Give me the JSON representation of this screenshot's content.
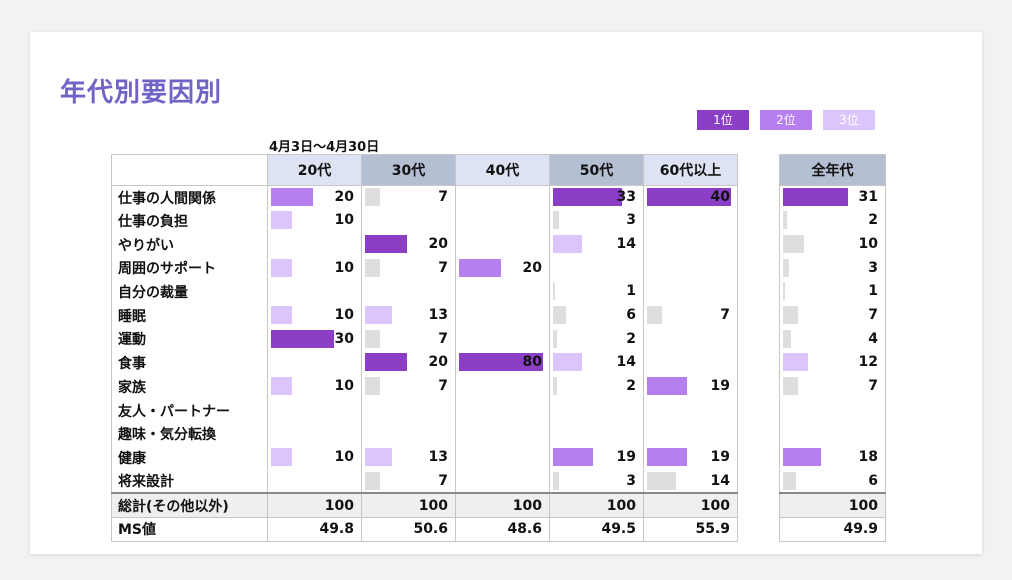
{
  "title": "年代別要因別",
  "period": "4月3日〜4月30日",
  "legend": [
    {
      "label": "1位",
      "color": "#8b3fc7"
    },
    {
      "label": "2位",
      "color": "#b77ef0"
    },
    {
      "label": "3位",
      "color": "#dcc5fb"
    }
  ],
  "colors": {
    "rank1": "#8b3fc7",
    "rank2": "#b77ef0",
    "rank3": "#dcc5fb",
    "other": "#dedede"
  },
  "chart_data": {
    "type": "table",
    "title": "年代別要因別",
    "subtitle": "4月3日〜4月30日",
    "columns": [
      {
        "label": "20代",
        "header_bg": "#dde3f3"
      },
      {
        "label": "30代",
        "header_bg": "#b5bfd3"
      },
      {
        "label": "40代",
        "header_bg": "#dde3f3"
      },
      {
        "label": "50代",
        "header_bg": "#b5bfd3"
      },
      {
        "label": "60代以上",
        "header_bg": "#dde3f3"
      }
    ],
    "total_column": {
      "label": "全年代",
      "header_bg": "#b5bfd3"
    },
    "rows": [
      {
        "label": "仕事の人間関係",
        "values": [
          20,
          7,
          null,
          33,
          40
        ],
        "total": 31,
        "ranks": [
          2,
          0,
          0,
          1,
          1
        ],
        "total_rank": 1
      },
      {
        "label": "仕事の負担",
        "values": [
          10,
          null,
          null,
          3,
          null
        ],
        "total": 2,
        "ranks": [
          3,
          0,
          0,
          0,
          0
        ],
        "total_rank": 0
      },
      {
        "label": "やりがい",
        "values": [
          null,
          20,
          null,
          14,
          null
        ],
        "total": 10,
        "ranks": [
          0,
          1,
          0,
          3,
          0
        ],
        "total_rank": 0
      },
      {
        "label": "周囲のサポート",
        "values": [
          10,
          7,
          20,
          null,
          null
        ],
        "total": 3,
        "ranks": [
          3,
          0,
          2,
          0,
          0
        ],
        "total_rank": 0,
        "note_50": "2"
      },
      {
        "label": "自分の裁量",
        "values": [
          null,
          null,
          null,
          1,
          null
        ],
        "total": 1,
        "ranks": [
          0,
          0,
          0,
          0,
          0
        ],
        "total_rank": 0
      },
      {
        "label": "睡眠",
        "values": [
          10,
          13,
          null,
          6,
          7
        ],
        "total": 7,
        "ranks": [
          3,
          3,
          0,
          0,
          0
        ],
        "total_rank": 0
      },
      {
        "label": "運動",
        "values": [
          30,
          7,
          null,
          2,
          null
        ],
        "total": 4,
        "ranks": [
          1,
          0,
          0,
          0,
          0
        ],
        "total_rank": 0
      },
      {
        "label": "食事",
        "values": [
          null,
          20,
          80,
          14,
          null
        ],
        "total": 12,
        "ranks": [
          0,
          1,
          1,
          3,
          0
        ],
        "total_rank": 3
      },
      {
        "label": "家族",
        "values": [
          10,
          7,
          null,
          2,
          19
        ],
        "total": 7,
        "ranks": [
          3,
          0,
          0,
          0,
          2
        ],
        "total_rank": 0
      },
      {
        "label": "友人・パートナー",
        "values": [
          null,
          null,
          null,
          null,
          null
        ],
        "total": null,
        "ranks": [
          0,
          0,
          0,
          0,
          0
        ],
        "total_rank": 0
      },
      {
        "label": "趣味・気分転換",
        "values": [
          null,
          null,
          null,
          null,
          null
        ],
        "total": null,
        "ranks": [
          0,
          0,
          0,
          0,
          0
        ],
        "total_rank": 0
      },
      {
        "label": "健康",
        "values": [
          10,
          13,
          null,
          19,
          19
        ],
        "total": 18,
        "ranks": [
          3,
          3,
          0,
          2,
          2
        ],
        "total_rank": 2
      },
      {
        "label": "将来設計",
        "values": [
          null,
          7,
          null,
          3,
          14
        ],
        "total": 6,
        "ranks": [
          0,
          0,
          0,
          0,
          0
        ],
        "total_rank": 0
      }
    ],
    "footer": [
      {
        "label": "総計(その他以外)",
        "values": [
          "100",
          "100",
          "100",
          "100",
          "100"
        ],
        "total": "100"
      },
      {
        "label": "MS値",
        "values": [
          "49.8",
          "50.6",
          "48.6",
          "49.5",
          "55.9"
        ],
        "total": "49.9"
      }
    ]
  }
}
